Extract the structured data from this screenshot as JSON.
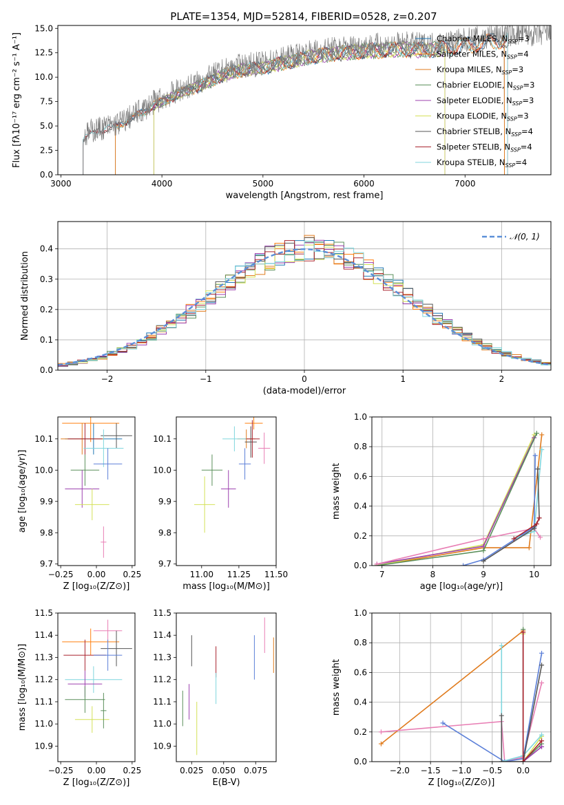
{
  "figure_title": "PLATE=1354, MJD=52814, FIBERID=0528, z=0.207",
  "colors": {
    "Chabrier MILES": "#1f77b4",
    "Salpeter MILES": "#ff7f0e",
    "Kroupa MILES": "#e07b1d",
    "Chabrier ELODIE": "#5a8f5a",
    "Salpeter ELODIE": "#9c3fae",
    "Kroupa ELODIE": "#d4e157",
    "Chabrier STELIB": "#555555",
    "Salpeter STELIB": "#a8232e",
    "Kroupa STELIB": "#7fd6dd",
    "kroupa_miles_line": "#e07b1d",
    "blue": "#5b7fd8",
    "pink": "#e87eb4",
    "spectrum": "#7f7f7f",
    "normal": "#5b8fd8"
  },
  "chart_data": [
    {
      "type": "line",
      "panel": "spectrum",
      "xlabel": "wavelength [Angstrom, rest frame]",
      "ylabel": "Flux [fλ10⁻¹⁷ erg cm⁻² s⁻¹ A⁻¹]",
      "xlim": [
        2970,
        7850
      ],
      "ylim": [
        0,
        15.3
      ],
      "xticks": [
        "3000",
        "4000",
        "5000",
        "6000",
        "7000"
      ],
      "yticks": [
        "0.0",
        "2.5",
        "5.0",
        "7.5",
        "10.0",
        "12.5",
        "15.0"
      ],
      "legend_position": "right",
      "legend": [
        {
          "name": "Chabrier MILES, N",
          "sub": "SSP",
          "tail": "=3"
        },
        {
          "name": "Salpeter MILES, N",
          "sub": "SSP",
          "tail": "=4"
        },
        {
          "name": "Kroupa MILES, N",
          "sub": "SSP",
          "tail": "=3"
        },
        {
          "name": "Chabrier ELODIE, N",
          "sub": "SSP",
          "tail": "=3"
        },
        {
          "name": "Salpeter ELODIE, N",
          "sub": "SSP",
          "tail": "=3"
        },
        {
          "name": "Kroupa ELODIE, N",
          "sub": "SSP",
          "tail": "=3"
        },
        {
          "name": "Chabrier STELIB, N",
          "sub": "SSP",
          "tail": "=4"
        },
        {
          "name": "Salpeter STELIB, N",
          "sub": "SSP",
          "tail": "=4"
        },
        {
          "name": "Kroupa STELIB, N",
          "sub": "SSP",
          "tail": "=4"
        }
      ],
      "continuum_x": [
        3220,
        3300,
        3400,
        3500,
        3600,
        3700,
        3800,
        3900,
        4000,
        4200,
        4400,
        4600,
        4800,
        5000,
        5200,
        5400,
        5600,
        5800,
        6000,
        6200,
        6400,
        6600,
        6800,
        7000,
        7200,
        7400
      ],
      "continuum_y": [
        3.8,
        4.5,
        4.8,
        5.0,
        5.4,
        6.0,
        6.6,
        7.3,
        7.8,
        8.8,
        9.6,
        10.6,
        11.2,
        11.4,
        11.9,
        12.4,
        12.8,
        13.0,
        13.2,
        13.3,
        13.4,
        13.3,
        13.5,
        13.8,
        14.1,
        14.4
      ],
      "model_starts": {
        "MILES": 3540,
        "ELODIE": 3920,
        "STELIB": 3220
      },
      "model_ends": {
        "MILES": 7390,
        "ELODIE": 6800,
        "STELIB": 7420
      }
    },
    {
      "type": "histogram",
      "panel": "residuals",
      "xlabel": "(data-model)/error",
      "ylabel": "Normed distribution",
      "xlim": [
        -2.5,
        2.5
      ],
      "ylim": [
        0,
        0.49
      ],
      "xticks": [
        "−2",
        "−1",
        "0",
        "1",
        "2"
      ],
      "yticks": [
        "0.0",
        "0.1",
        "0.2",
        "0.3",
        "0.4"
      ],
      "grid": true,
      "legend_position": "top-right",
      "normal_label": "𝒩(0, 1)",
      "bin_width": 0.1
    },
    {
      "type": "scatter",
      "panel": "age-vs-Z",
      "xlabel": "Z [log₁₀(Z/Z⊙)]",
      "ylabel": "age  [log₁₀(age/yr)]",
      "xlim": [
        -0.27,
        0.27
      ],
      "ylim": [
        9.695,
        10.17
      ],
      "xticks": [
        "−0.25",
        "0.00",
        "0.25"
      ],
      "yticks": [
        "9.7",
        "9.8",
        "9.9",
        "10.0",
        "10.1"
      ],
      "points": [
        {
          "x": -0.02,
          "y": 10.1,
          "xe": 0.2,
          "ye": 0.05,
          "c": "#1f77b4"
        },
        {
          "x": -0.04,
          "y": 10.15,
          "xe": 0.2,
          "ye": 0.06,
          "c": "#ff7f0e"
        },
        {
          "x": -0.1,
          "y": 10.1,
          "xe": 0.15,
          "ye": 0.05,
          "c": "#e07b1d"
        },
        {
          "x": -0.08,
          "y": 10.0,
          "xe": 0.1,
          "ye": 0.05,
          "c": "#5a8f5a"
        },
        {
          "x": -0.1,
          "y": 9.94,
          "xe": 0.12,
          "ye": 0.06,
          "c": "#9c3fae"
        },
        {
          "x": -0.03,
          "y": 9.89,
          "xe": 0.12,
          "ye": 0.05,
          "c": "#d4e157"
        },
        {
          "x": 0.14,
          "y": 10.11,
          "xe": 0.11,
          "ye": 0.04,
          "c": "#555555"
        },
        {
          "x": -0.08,
          "y": 10.1,
          "xe": 0.12,
          "ye": 0.05,
          "c": "#a8232e"
        },
        {
          "x": 0.05,
          "y": 10.07,
          "xe": 0.14,
          "ye": 0.06,
          "c": "#7fd6dd"
        },
        {
          "x": 0.08,
          "y": 10.02,
          "xe": 0.1,
          "ye": 0.05,
          "c": "#5b7fd8"
        },
        {
          "x": 0.05,
          "y": 9.77,
          "xe": 0.02,
          "ye": 0.05,
          "c": "#e87eb4"
        }
      ]
    },
    {
      "type": "scatter",
      "panel": "age-vs-mass",
      "xlabel": "mass [log₁₀(M/M⊙)]",
      "xlim": [
        10.83,
        11.5
      ],
      "ylim": [
        9.695,
        10.17
      ],
      "xticks": [
        "11.00",
        "11.25",
        "11.50"
      ],
      "yticks": [
        "9.7",
        "9.8",
        "9.9",
        "10.0",
        "10.1"
      ],
      "points": [
        {
          "x": 11.35,
          "y": 10.15,
          "xe": 0.06,
          "ye": 0.02,
          "c": "#ff7f0e"
        },
        {
          "x": 11.3,
          "y": 10.1,
          "xe": 0.06,
          "ye": 0.03,
          "c": "#e07b1d"
        },
        {
          "x": 11.33,
          "y": 10.09,
          "xe": 0.04,
          "ye": 0.05,
          "c": "#555555"
        },
        {
          "x": 11.34,
          "y": 10.1,
          "xe": 0.05,
          "ye": 0.06,
          "c": "#a8232e"
        },
        {
          "x": 11.42,
          "y": 10.07,
          "xe": 0.04,
          "ye": 0.05,
          "c": "#e87eb4"
        },
        {
          "x": 11.22,
          "y": 10.1,
          "xe": 0.08,
          "ye": 0.04,
          "c": "#7fd6dd"
        },
        {
          "x": 11.29,
          "y": 10.02,
          "xe": 0.04,
          "ye": 0.05,
          "c": "#5b7fd8"
        },
        {
          "x": 11.07,
          "y": 10.0,
          "xe": 0.07,
          "ye": 0.05,
          "c": "#5a8f5a"
        },
        {
          "x": 11.18,
          "y": 9.94,
          "xe": 0.05,
          "ye": 0.06,
          "c": "#9c3fae"
        },
        {
          "x": 11.02,
          "y": 9.89,
          "xe": 0.07,
          "ye": 0.09,
          "c": "#d4e157"
        }
      ]
    },
    {
      "type": "line",
      "panel": "mass-weight-vs-age",
      "xlabel": "age  [log₁₀(age/yr)]",
      "ylabel": "mass weight",
      "xlim": [
        6.8,
        10.33
      ],
      "ylim": [
        0,
        1.0
      ],
      "xticks": [
        "7",
        "8",
        "9",
        "10"
      ],
      "yticks": [
        "0.0",
        "0.2",
        "0.4",
        "0.6",
        "0.8",
        "1.0"
      ],
      "grid": true,
      "series": [
        {
          "c": "#e07b1d",
          "pts": [
            [
              6.9,
              0.0
            ],
            [
              9.0,
              0.12
            ],
            [
              9.9,
              0.12
            ],
            [
              10.15,
              0.88
            ]
          ]
        },
        {
          "c": "#d4e157",
          "pts": [
            [
              6.9,
              0.0
            ],
            [
              9.0,
              0.14
            ],
            [
              10.0,
              0.88
            ]
          ]
        },
        {
          "c": "#9c3fae",
          "pts": [
            [
              6.9,
              0.01
            ],
            [
              9.0,
              0.13
            ],
            [
              10.0,
              0.86
            ]
          ]
        },
        {
          "c": "#5a8f5a",
          "pts": [
            [
              6.9,
              0.0
            ],
            [
              9.0,
              0.1
            ],
            [
              10.05,
              0.89
            ]
          ]
        },
        {
          "c": "#e87eb4",
          "pts": [
            [
              6.9,
              0.01
            ],
            [
              9.0,
              0.18
            ],
            [
              10.0,
              0.25
            ],
            [
              10.12,
              0.19
            ]
          ]
        },
        {
          "c": "#5b7fd8",
          "pts": [
            [
              8.6,
              0.0
            ],
            [
              9.0,
              0.04
            ],
            [
              10.0,
              0.26
            ],
            [
              10.02,
              0.74
            ]
          ]
        },
        {
          "c": "#7fd6dd",
          "pts": [
            [
              9.6,
              0.18
            ],
            [
              10.0,
              0.23
            ],
            [
              10.15,
              0.78
            ]
          ]
        },
        {
          "c": "#555555",
          "pts": [
            [
              9.0,
              0.03
            ],
            [
              10.0,
              0.25
            ],
            [
              10.1,
              0.32
            ],
            [
              10.07,
              0.65
            ]
          ]
        },
        {
          "c": "#a8232e",
          "pts": [
            [
              9.6,
              0.18
            ],
            [
              10.05,
              0.28
            ],
            [
              10.1,
              0.32
            ]
          ]
        }
      ]
    },
    {
      "type": "scatter",
      "panel": "mass-vs-Z",
      "xlabel": "Z [log₁₀(Z/Z⊙)]",
      "ylabel": "mass [log₁₀(M/M⊙)]",
      "xlim": [
        -0.27,
        0.27
      ],
      "ylim": [
        10.83,
        11.5
      ],
      "xticks": [
        "−0.25",
        "0.00",
        "0.25"
      ],
      "yticks": [
        "10.9",
        "11.0",
        "11.1",
        "11.2",
        "11.3",
        "11.4",
        "11.5"
      ],
      "points": [
        {
          "x": -0.04,
          "y": 11.37,
          "xe": 0.2,
          "ye": 0.06,
          "c": "#ff7f0e"
        },
        {
          "x": -0.08,
          "y": 11.31,
          "xe": 0.15,
          "ye": 0.07,
          "c": "#a8232e"
        },
        {
          "x": 0.08,
          "y": 11.42,
          "xe": 0.1,
          "ye": 0.05,
          "c": "#e87eb4"
        },
        {
          "x": 0.14,
          "y": 11.34,
          "xe": 0.11,
          "ye": 0.08,
          "c": "#555555"
        },
        {
          "x": 0.08,
          "y": 11.31,
          "xe": 0.1,
          "ye": 0.07,
          "c": "#5b7fd8"
        },
        {
          "x": -0.02,
          "y": 11.2,
          "xe": 0.2,
          "ye": 0.06,
          "c": "#7fd6dd"
        },
        {
          "x": -0.08,
          "y": 11.18,
          "xe": 0.12,
          "ye": 0.06,
          "c": "#9c3fae"
        },
        {
          "x": -0.08,
          "y": 11.11,
          "xe": 0.14,
          "ye": 0.06,
          "c": "#5a8f5a"
        },
        {
          "x": -0.03,
          "y": 11.02,
          "xe": 0.12,
          "ye": 0.06,
          "c": "#d4e157"
        },
        {
          "x": 0.05,
          "y": 11.06,
          "xe": 0.02,
          "ye": 0.08,
          "c": "#5a8f5a"
        }
      ]
    },
    {
      "type": "scatter",
      "panel": "mass-vs-EBV",
      "xlabel": "E(B-V)",
      "xlim": [
        0.013,
        0.091
      ],
      "ylim": [
        10.83,
        11.5
      ],
      "xticks": [
        "0.025",
        "0.050",
        "0.075"
      ],
      "yticks": [
        "10.9",
        "11.0",
        "11.1",
        "11.2",
        "11.3",
        "11.4",
        "11.5"
      ],
      "points": [
        {
          "x": 0.018,
          "y": 11.07,
          "ye": 0.08,
          "c": "#5a8f5a"
        },
        {
          "x": 0.023,
          "y": 11.1,
          "ye": 0.08,
          "c": "#9c3fae"
        },
        {
          "x": 0.025,
          "y": 11.33,
          "ye": 0.07,
          "c": "#555555"
        },
        {
          "x": 0.029,
          "y": 10.98,
          "ye": 0.12,
          "c": "#d4e157"
        },
        {
          "x": 0.044,
          "y": 11.28,
          "ye": 0.07,
          "c": "#a8232e"
        },
        {
          "x": 0.044,
          "y": 11.16,
          "ye": 0.07,
          "c": "#7fd6dd"
        },
        {
          "x": 0.074,
          "y": 11.3,
          "ye": 0.1,
          "c": "#5b7fd8"
        },
        {
          "x": 0.082,
          "y": 11.4,
          "ye": 0.08,
          "c": "#e87eb4"
        },
        {
          "x": 0.089,
          "y": 11.31,
          "ye": 0.08,
          "c": "#e07b1d"
        }
      ]
    },
    {
      "type": "line",
      "panel": "mass-weight-vs-Z",
      "xlabel": "Z [log₁₀(Z/Z⊙)]",
      "ylabel": "mass weight",
      "xlim": [
        -2.45,
        0.45
      ],
      "ylim": [
        0,
        1.0
      ],
      "xticks": [
        "−2.0",
        "−1.5",
        "−1.0",
        "−0.5",
        "0.0"
      ],
      "yticks": [
        "0.0",
        "0.2",
        "0.4",
        "0.6",
        "0.8",
        "1.0"
      ],
      "grid": true,
      "series": [
        {
          "c": "#e07b1d",
          "pts": [
            [
              -2.3,
              0.12
            ],
            [
              0.0,
              0.88
            ]
          ]
        },
        {
          "c": "#d4e157",
          "pts": [
            [
              0.0,
              0.86
            ],
            [
              0.0,
              0.0
            ],
            [
              0.3,
              0.17
            ]
          ]
        },
        {
          "c": "#5a8f5a",
          "pts": [
            [
              0.0,
              0.89
            ],
            [
              0.0,
              0.0
            ],
            [
              0.3,
              0.12
            ]
          ]
        },
        {
          "c": "#e87eb4",
          "pts": [
            [
              -2.3,
              0.2
            ],
            [
              -0.35,
              0.27
            ],
            [
              -0.3,
              0.0
            ],
            [
              0.0,
              0.03
            ],
            [
              0.3,
              0.53
            ]
          ]
        },
        {
          "c": "#5b7fd8",
          "pts": [
            [
              -1.3,
              0.26
            ],
            [
              -0.3,
              0.0
            ],
            [
              0.0,
              0.02
            ],
            [
              0.3,
              0.73
            ]
          ]
        },
        {
          "c": "#7fd6dd",
          "pts": [
            [
              -0.35,
              0.78
            ],
            [
              -0.35,
              0.0
            ],
            [
              0.0,
              0.04
            ],
            [
              0.3,
              0.18
            ]
          ]
        },
        {
          "c": "#555555",
          "pts": [
            [
              -0.35,
              0.31
            ],
            [
              -0.35,
              0.0
            ],
            [
              0.0,
              0.0
            ],
            [
              0.3,
              0.65
            ]
          ]
        },
        {
          "c": "#9c3fae",
          "pts": [
            [
              0.0,
              0.87
            ],
            [
              0.0,
              0.0
            ],
            [
              0.3,
              0.1
            ]
          ]
        },
        {
          "c": "#a8232e",
          "pts": [
            [
              0.0,
              0.87
            ],
            [
              0.0,
              0.0
            ],
            [
              0.3,
              0.14
            ]
          ]
        }
      ]
    }
  ]
}
